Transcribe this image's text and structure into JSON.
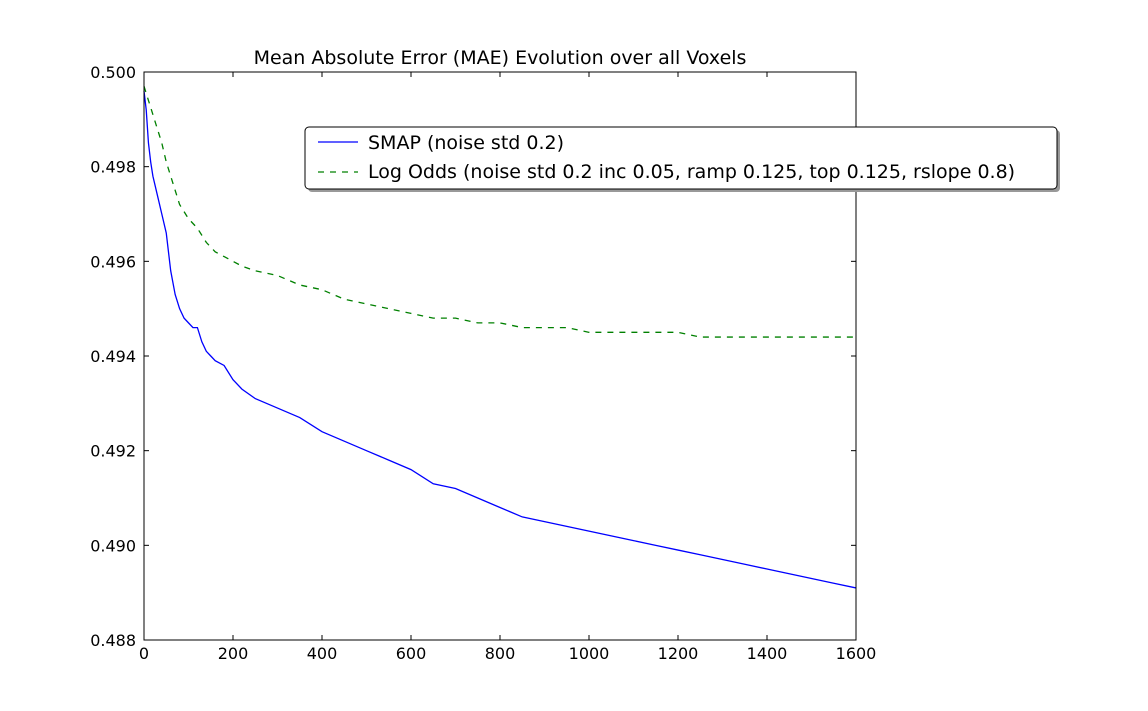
{
  "chart_data": {
    "type": "line",
    "title": "Mean Absolute Error (MAE) Evolution over all Voxels",
    "xlabel": "",
    "ylabel": "",
    "xlim": [
      0,
      1600
    ],
    "ylim": [
      0.488,
      0.5
    ],
    "xticks": [
      0,
      200,
      400,
      600,
      800,
      1000,
      1200,
      1400,
      1600
    ],
    "xtick_labels": [
      "0",
      "200",
      "400",
      "600",
      "800",
      "1000",
      "1200",
      "1400",
      "1600"
    ],
    "yticks": [
      0.488,
      0.49,
      0.492,
      0.494,
      0.496,
      0.498,
      0.5
    ],
    "ytick_labels": [
      "0.488",
      "0.490",
      "0.492",
      "0.494",
      "0.496",
      "0.498",
      "0.500"
    ],
    "grid": false,
    "legend_position": "top-right",
    "series": [
      {
        "name": "SMAP (noise std 0.2)",
        "color": "#0000ff",
        "style": "solid",
        "x": [
          0,
          5,
          10,
          15,
          20,
          30,
          40,
          50,
          60,
          70,
          80,
          90,
          100,
          110,
          120,
          130,
          140,
          150,
          160,
          180,
          200,
          220,
          250,
          300,
          350,
          400,
          450,
          500,
          550,
          600,
          650,
          700,
          750,
          800,
          850,
          900,
          950,
          1000,
          1050,
          1100,
          1150,
          1200,
          1250,
          1300,
          1350,
          1400,
          1450,
          1500,
          1550,
          1600
        ],
        "y": [
          0.4996,
          0.4992,
          0.4985,
          0.4981,
          0.4978,
          0.4974,
          0.497,
          0.4966,
          0.4958,
          0.4953,
          0.495,
          0.4948,
          0.4947,
          0.4946,
          0.4946,
          0.4943,
          0.4941,
          0.494,
          0.4939,
          0.4938,
          0.4935,
          0.4933,
          0.4931,
          0.4929,
          0.4927,
          0.4924,
          0.4922,
          0.492,
          0.4918,
          0.4916,
          0.4913,
          0.4912,
          0.491,
          0.4908,
          0.4906,
          0.4905,
          0.4904,
          0.4903,
          0.4902,
          0.4901,
          0.49,
          0.4899,
          0.4898,
          0.4897,
          0.4896,
          0.4895,
          0.4894,
          0.4893,
          0.4892,
          0.4891
        ]
      },
      {
        "name": "Log Odds (noise std 0.2 inc 0.05, ramp 0.125, top 0.125, rslope 0.8)",
        "color": "#008000",
        "style": "dashed",
        "x": [
          0,
          10,
          20,
          30,
          40,
          50,
          60,
          70,
          80,
          100,
          120,
          140,
          160,
          180,
          200,
          220,
          250,
          300,
          350,
          400,
          450,
          500,
          550,
          600,
          650,
          700,
          750,
          800,
          850,
          900,
          950,
          1000,
          1050,
          1100,
          1150,
          1200,
          1250,
          1300,
          1350,
          1400,
          1450,
          1500,
          1550,
          1600
        ],
        "y": [
          0.4997,
          0.4994,
          0.4991,
          0.4988,
          0.4985,
          0.4981,
          0.4978,
          0.4975,
          0.4972,
          0.4969,
          0.4967,
          0.4964,
          0.4962,
          0.4961,
          0.496,
          0.4959,
          0.4958,
          0.4957,
          0.4955,
          0.4954,
          0.4952,
          0.4951,
          0.495,
          0.4949,
          0.4948,
          0.4948,
          0.4947,
          0.4947,
          0.4946,
          0.4946,
          0.4946,
          0.4945,
          0.4945,
          0.4945,
          0.4945,
          0.4945,
          0.4944,
          0.4944,
          0.4944,
          0.4944,
          0.4944,
          0.4944,
          0.4944,
          0.4944
        ]
      }
    ]
  }
}
